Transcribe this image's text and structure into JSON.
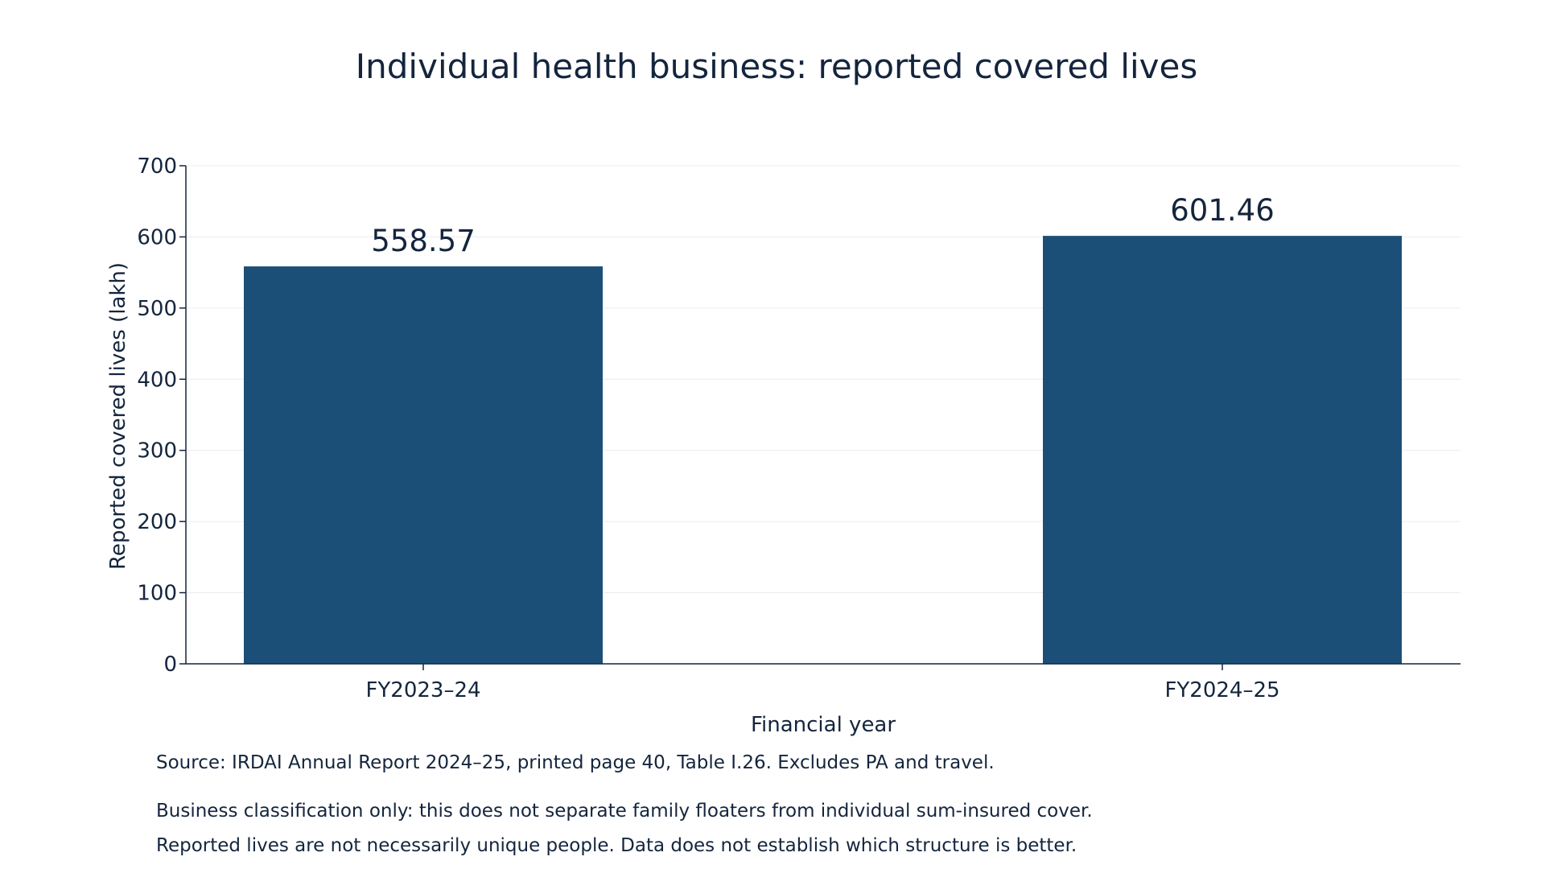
{
  "chart_data": {
    "type": "bar",
    "title": "Individual health business: reported covered lives",
    "xlabel": "Financial year",
    "ylabel": "Reported covered lives (lakh)",
    "categories": [
      "FY2023–24",
      "FY2024–25"
    ],
    "values": [
      558.57,
      601.46
    ],
    "data_labels": [
      "558.57",
      "601.46"
    ],
    "ylim": [
      0,
      700
    ],
    "yticks": [
      0,
      100,
      200,
      300,
      400,
      500,
      600,
      700
    ],
    "grid": true,
    "legend": "none",
    "bar_color": "#1b4f78"
  },
  "notes": {
    "source": "Source: IRDAI Annual Report 2024–25, printed page 40, Table I.26. Excludes PA and travel.",
    "line1": "Business classification only: this does not separate family floaters from individual sum-insured cover.",
    "line2": "Reported lives are not necessarily unique people. Data does not establish which structure is better."
  }
}
